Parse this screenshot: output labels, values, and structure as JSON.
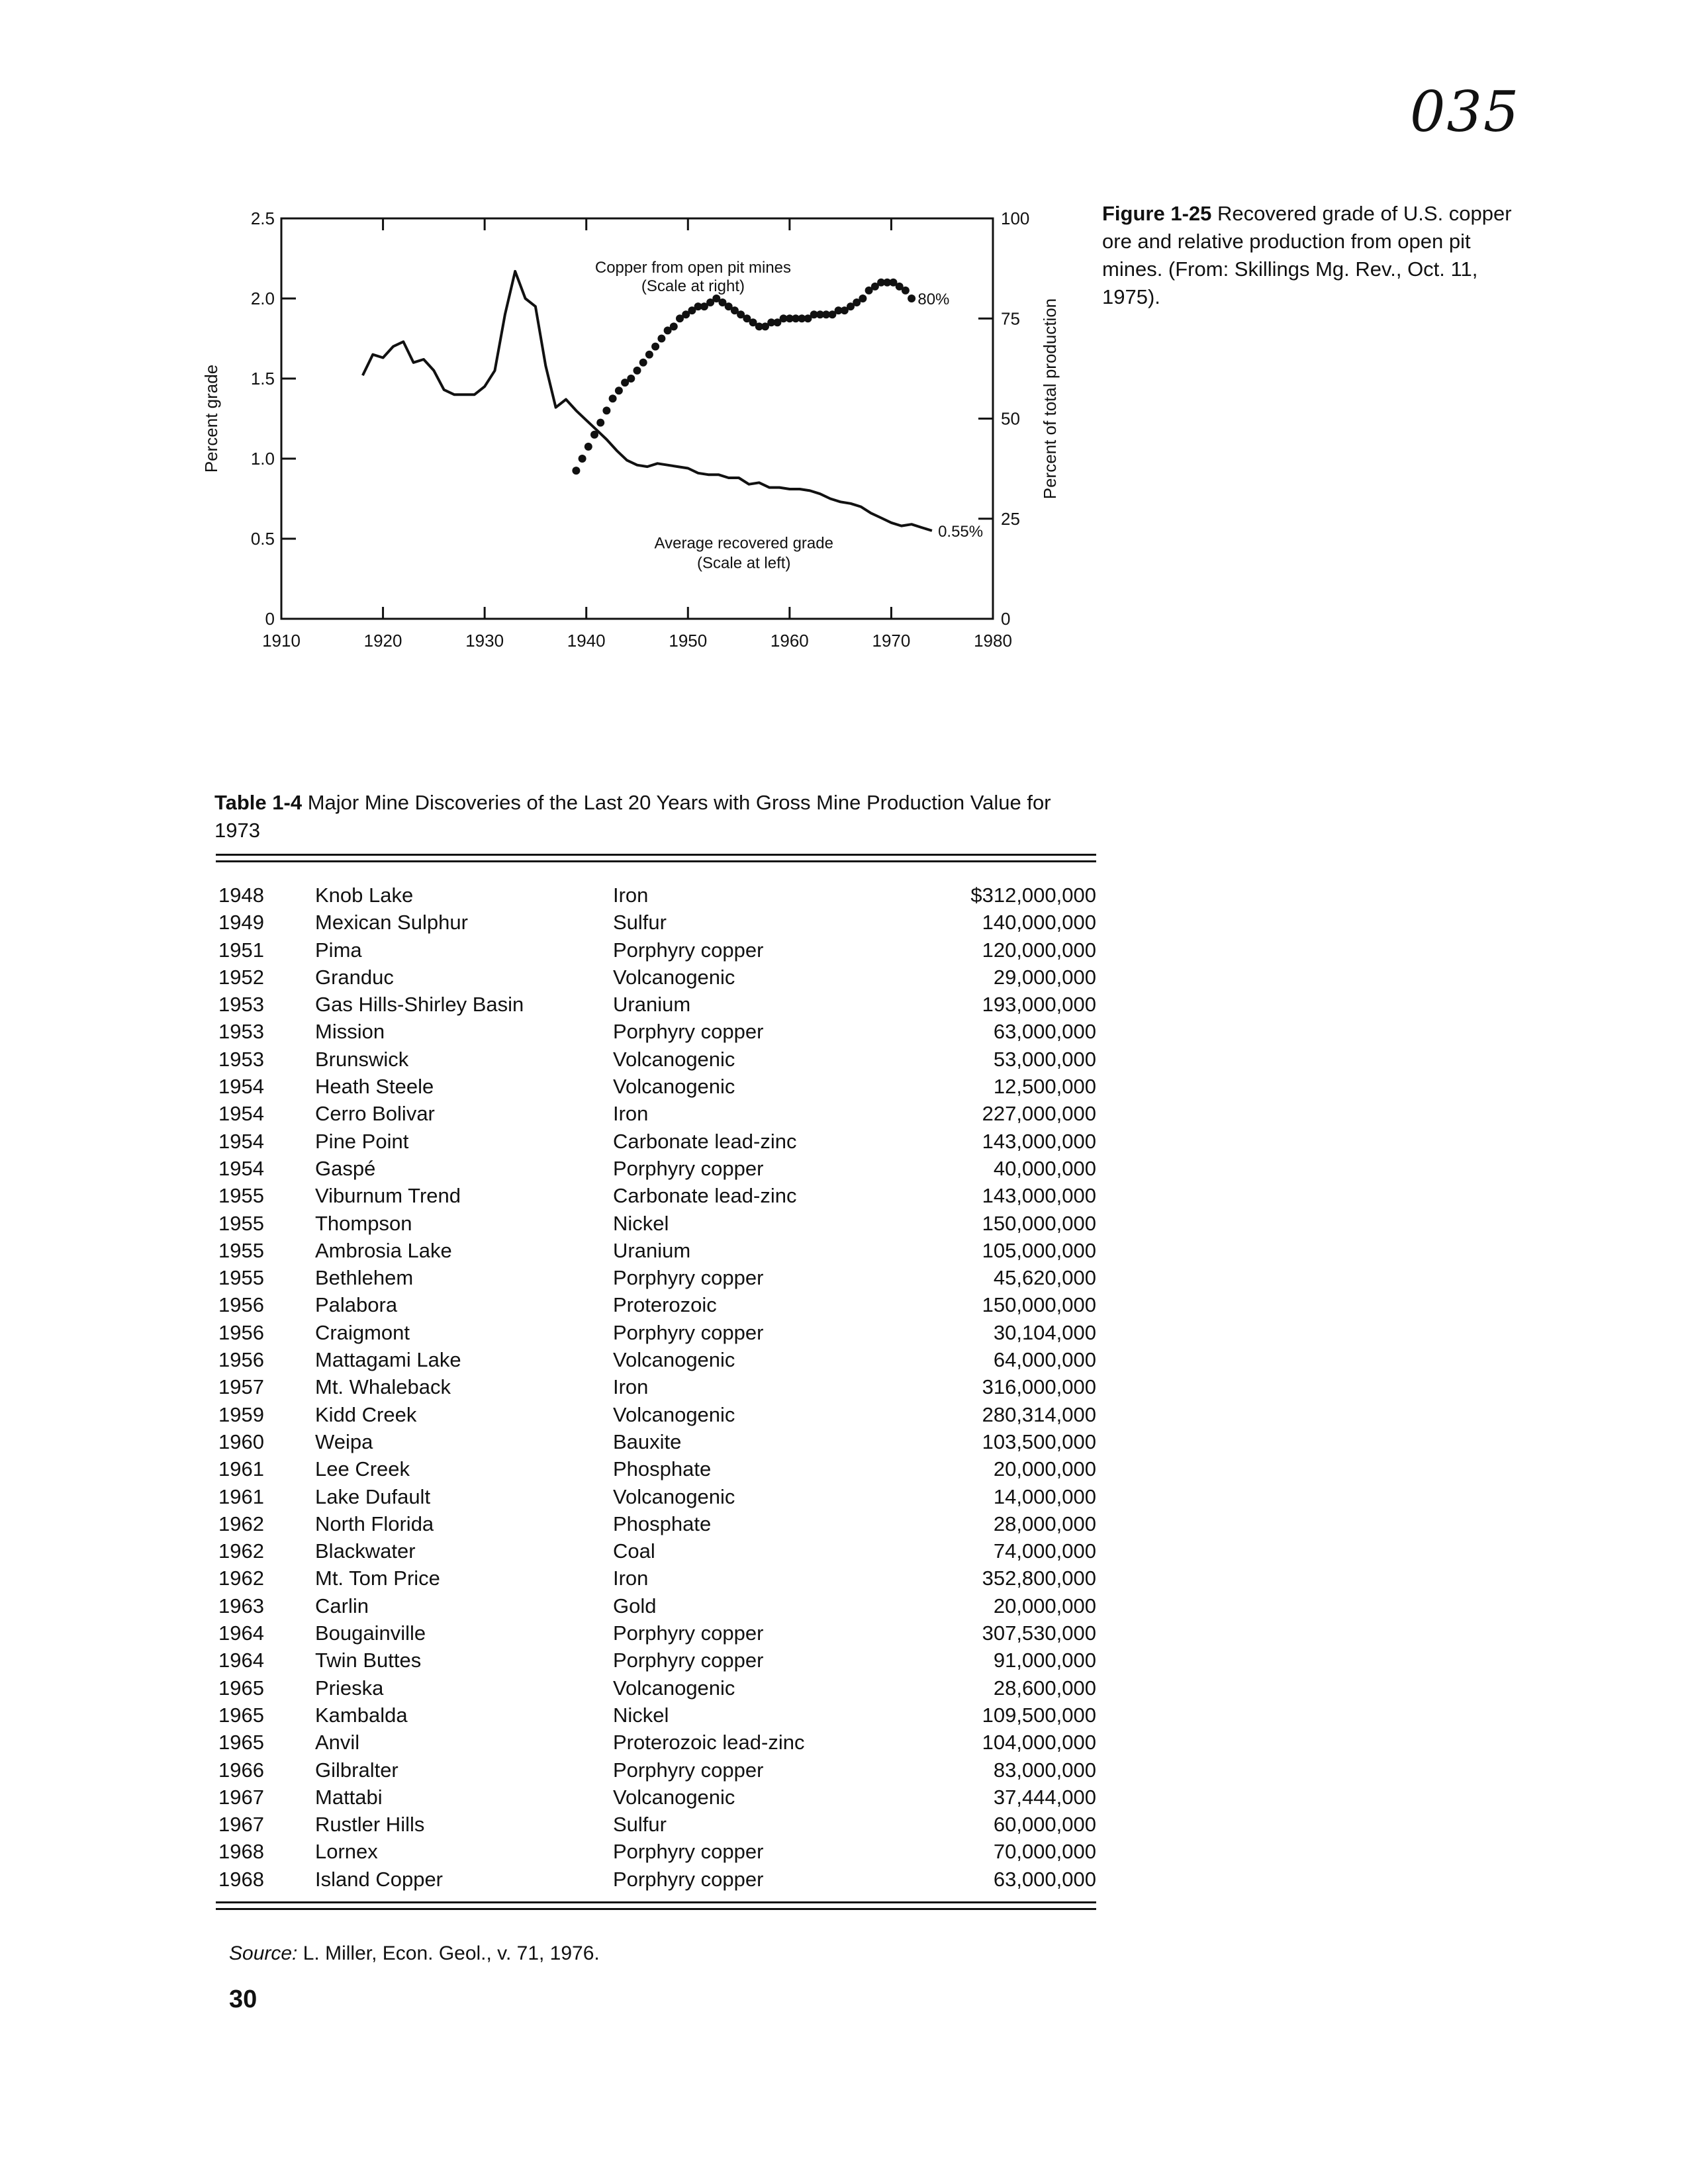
{
  "stamp": "035",
  "figure": {
    "label": "Figure 1-25",
    "caption": "Recovered grade of U.S. copper ore and relative production from open pit mines. (From: Skillings Mg. Rev., Oct. 11, 1975)."
  },
  "chart_data": {
    "type": "line",
    "xlabel": "",
    "ylabel": "Percent grade",
    "y2label": "Percent of total production",
    "xlim": [
      1910,
      1980
    ],
    "ylim": [
      0,
      2.5
    ],
    "y2lim": [
      0,
      100
    ],
    "xticks": [
      "1910",
      "1920",
      "1930",
      "1940",
      "1950",
      "1960",
      "1970",
      "1980"
    ],
    "yticks": [
      "0",
      "0.5",
      "1.0",
      "1.5",
      "2.0",
      "2.5"
    ],
    "y2ticks": [
      "0",
      "25",
      "50",
      "75",
      "100"
    ],
    "annotations": {
      "open_pit_title": "Copper from open pit mines",
      "open_pit_scale": "(Scale at right)",
      "open_pit_end": "80%",
      "grade_title": "Average recovered grade",
      "grade_scale": "(Scale at left)",
      "grade_end": "0.55%"
    },
    "series": [
      {
        "axis": "left",
        "style": "line",
        "x": [
          1918,
          1919,
          1920,
          1921,
          1922,
          1923,
          1924,
          1925,
          1926,
          1927,
          1928,
          1929,
          1930,
          1931,
          1932,
          1933,
          1934,
          1935,
          1936,
          1937,
          1938,
          1939,
          1940,
          1941,
          1942,
          1943,
          1944,
          1945,
          1946,
          1947,
          1948,
          1949,
          1950,
          1951,
          1952,
          1953,
          1954,
          1955,
          1956,
          1957,
          1958,
          1959,
          1960,
          1961,
          1962,
          1963,
          1964,
          1965,
          1966,
          1967,
          1968,
          1969,
          1970,
          1971,
          1972,
          1973,
          1974
        ],
        "y": [
          1.52,
          1.65,
          1.63,
          1.7,
          1.73,
          1.6,
          1.62,
          1.55,
          1.43,
          1.4,
          1.4,
          1.4,
          1.45,
          1.55,
          1.9,
          2.17,
          2.0,
          1.95,
          1.58,
          1.32,
          1.37,
          1.3,
          1.24,
          1.18,
          1.12,
          1.05,
          0.99,
          0.96,
          0.95,
          0.97,
          0.96,
          0.95,
          0.94,
          0.91,
          0.9,
          0.9,
          0.88,
          0.88,
          0.84,
          0.85,
          0.82,
          0.82,
          0.81,
          0.81,
          0.8,
          0.78,
          0.75,
          0.73,
          0.72,
          0.7,
          0.66,
          0.63,
          0.6,
          0.58,
          0.59,
          0.57,
          0.55
        ]
      },
      {
        "axis": "right",
        "style": "dots",
        "x": [
          1939,
          1939.6,
          1940.2,
          1940.8,
          1941.4,
          1942,
          1942.6,
          1943.2,
          1943.8,
          1944.4,
          1945,
          1945.6,
          1946.2,
          1946.8,
          1947.4,
          1948,
          1948.6,
          1949.2,
          1949.8,
          1950.4,
          1951,
          1951.6,
          1952.2,
          1952.8,
          1953.4,
          1954,
          1954.6,
          1955.2,
          1955.8,
          1956.4,
          1957,
          1957.6,
          1958.2,
          1958.8,
          1959.4,
          1960,
          1960.6,
          1961.2,
          1961.8,
          1962.4,
          1963,
          1963.6,
          1964.2,
          1964.8,
          1965.4,
          1966,
          1966.6,
          1967.2,
          1967.8,
          1968.4,
          1969,
          1969.6,
          1970.2,
          1970.8,
          1971.4,
          1972
        ],
        "y": [
          37,
          40,
          43,
          46,
          49,
          52,
          55,
          57,
          59,
          60,
          62,
          64,
          66,
          68,
          70,
          72,
          73,
          75,
          76,
          77,
          78,
          78,
          79,
          80,
          79,
          78,
          77,
          76,
          75,
          74,
          73,
          73,
          74,
          74,
          75,
          75,
          75,
          75,
          75,
          76,
          76,
          76,
          76,
          77,
          77,
          78,
          79,
          80,
          82,
          83,
          84,
          84,
          84,
          83,
          82,
          80
        ]
      }
    ]
  },
  "table": {
    "label": "Table 1-4",
    "title": "Major Mine Discoveries of the Last 20 Years with Gross Mine Production Value for 1973",
    "rows": [
      {
        "year": "1948",
        "name": "Knob Lake",
        "type": "Iron",
        "value": "$312,000,000"
      },
      {
        "year": "1949",
        "name": "Mexican Sulphur",
        "type": "Sulfur",
        "value": "140,000,000"
      },
      {
        "year": "1951",
        "name": "Pima",
        "type": "Porphyry copper",
        "value": "120,000,000"
      },
      {
        "year": "1952",
        "name": "Granduc",
        "type": "Volcanogenic",
        "value": "29,000,000"
      },
      {
        "year": "1953",
        "name": "Gas Hills-Shirley Basin",
        "type": "Uranium",
        "value": "193,000,000"
      },
      {
        "year": "1953",
        "name": "Mission",
        "type": "Porphyry copper",
        "value": "63,000,000"
      },
      {
        "year": "1953",
        "name": "Brunswick",
        "type": "Volcanogenic",
        "value": "53,000,000"
      },
      {
        "year": "1954",
        "name": "Heath Steele",
        "type": "Volcanogenic",
        "value": "12,500,000"
      },
      {
        "year": "1954",
        "name": "Cerro Bolivar",
        "type": "Iron",
        "value": "227,000,000"
      },
      {
        "year": "1954",
        "name": "Pine Point",
        "type": "Carbonate lead-zinc",
        "value": "143,000,000"
      },
      {
        "year": "1954",
        "name": "Gaspé",
        "type": "Porphyry copper",
        "value": "40,000,000"
      },
      {
        "year": "1955",
        "name": "Viburnum Trend",
        "type": "Carbonate lead-zinc",
        "value": "143,000,000"
      },
      {
        "year": "1955",
        "name": "Thompson",
        "type": "Nickel",
        "value": "150,000,000"
      },
      {
        "year": "1955",
        "name": "Ambrosia Lake",
        "type": "Uranium",
        "value": "105,000,000"
      },
      {
        "year": "1955",
        "name": "Bethlehem",
        "type": "Porphyry copper",
        "value": "45,620,000"
      },
      {
        "year": "1956",
        "name": "Palabora",
        "type": "Proterozoic",
        "value": "150,000,000"
      },
      {
        "year": "1956",
        "name": "Craigmont",
        "type": "Porphyry copper",
        "value": "30,104,000"
      },
      {
        "year": "1956",
        "name": "Mattagami Lake",
        "type": "Volcanogenic",
        "value": "64,000,000"
      },
      {
        "year": "1957",
        "name": "Mt. Whaleback",
        "type": "Iron",
        "value": "316,000,000"
      },
      {
        "year": "1959",
        "name": "Kidd Creek",
        "type": "Volcanogenic",
        "value": "280,314,000"
      },
      {
        "year": "1960",
        "name": "Weipa",
        "type": "Bauxite",
        "value": "103,500,000"
      },
      {
        "year": "1961",
        "name": "Lee Creek",
        "type": "Phosphate",
        "value": "20,000,000"
      },
      {
        "year": "1961",
        "name": "Lake Dufault",
        "type": "Volcanogenic",
        "value": "14,000,000"
      },
      {
        "year": "1962",
        "name": "North Florida",
        "type": "Phosphate",
        "value": "28,000,000"
      },
      {
        "year": "1962",
        "name": "Blackwater",
        "type": "Coal",
        "value": "74,000,000"
      },
      {
        "year": "1962",
        "name": "Mt. Tom Price",
        "type": "Iron",
        "value": "352,800,000"
      },
      {
        "year": "1963",
        "name": "Carlin",
        "type": "Gold",
        "value": "20,000,000"
      },
      {
        "year": "1964",
        "name": "Bougainville",
        "type": "Porphyry copper",
        "value": "307,530,000"
      },
      {
        "year": "1964",
        "name": "Twin Buttes",
        "type": "Porphyry copper",
        "value": "91,000,000"
      },
      {
        "year": "1965",
        "name": "Prieska",
        "type": "Volcanogenic",
        "value": "28,600,000"
      },
      {
        "year": "1965",
        "name": "Kambalda",
        "type": "Nickel",
        "value": "109,500,000"
      },
      {
        "year": "1965",
        "name": "Anvil",
        "type": "Proterozoic lead-zinc",
        "value": "104,000,000"
      },
      {
        "year": "1966",
        "name": "Gilbralter",
        "type": "Porphyry copper",
        "value": "83,000,000"
      },
      {
        "year": "1967",
        "name": "Mattabi",
        "type": "Volcanogenic",
        "value": "37,444,000"
      },
      {
        "year": "1967",
        "name": "Rustler Hills",
        "type": "Sulfur",
        "value": "60,000,000"
      },
      {
        "year": "1968",
        "name": "Lornex",
        "type": "Porphyry copper",
        "value": "70,000,000"
      },
      {
        "year": "1968",
        "name": "Island Copper",
        "type": "Porphyry copper",
        "value": "63,000,000"
      }
    ],
    "source_label": "Source:",
    "source_text": "L. Miller, Econ. Geol., v. 71, 1976."
  },
  "page_number": "30"
}
